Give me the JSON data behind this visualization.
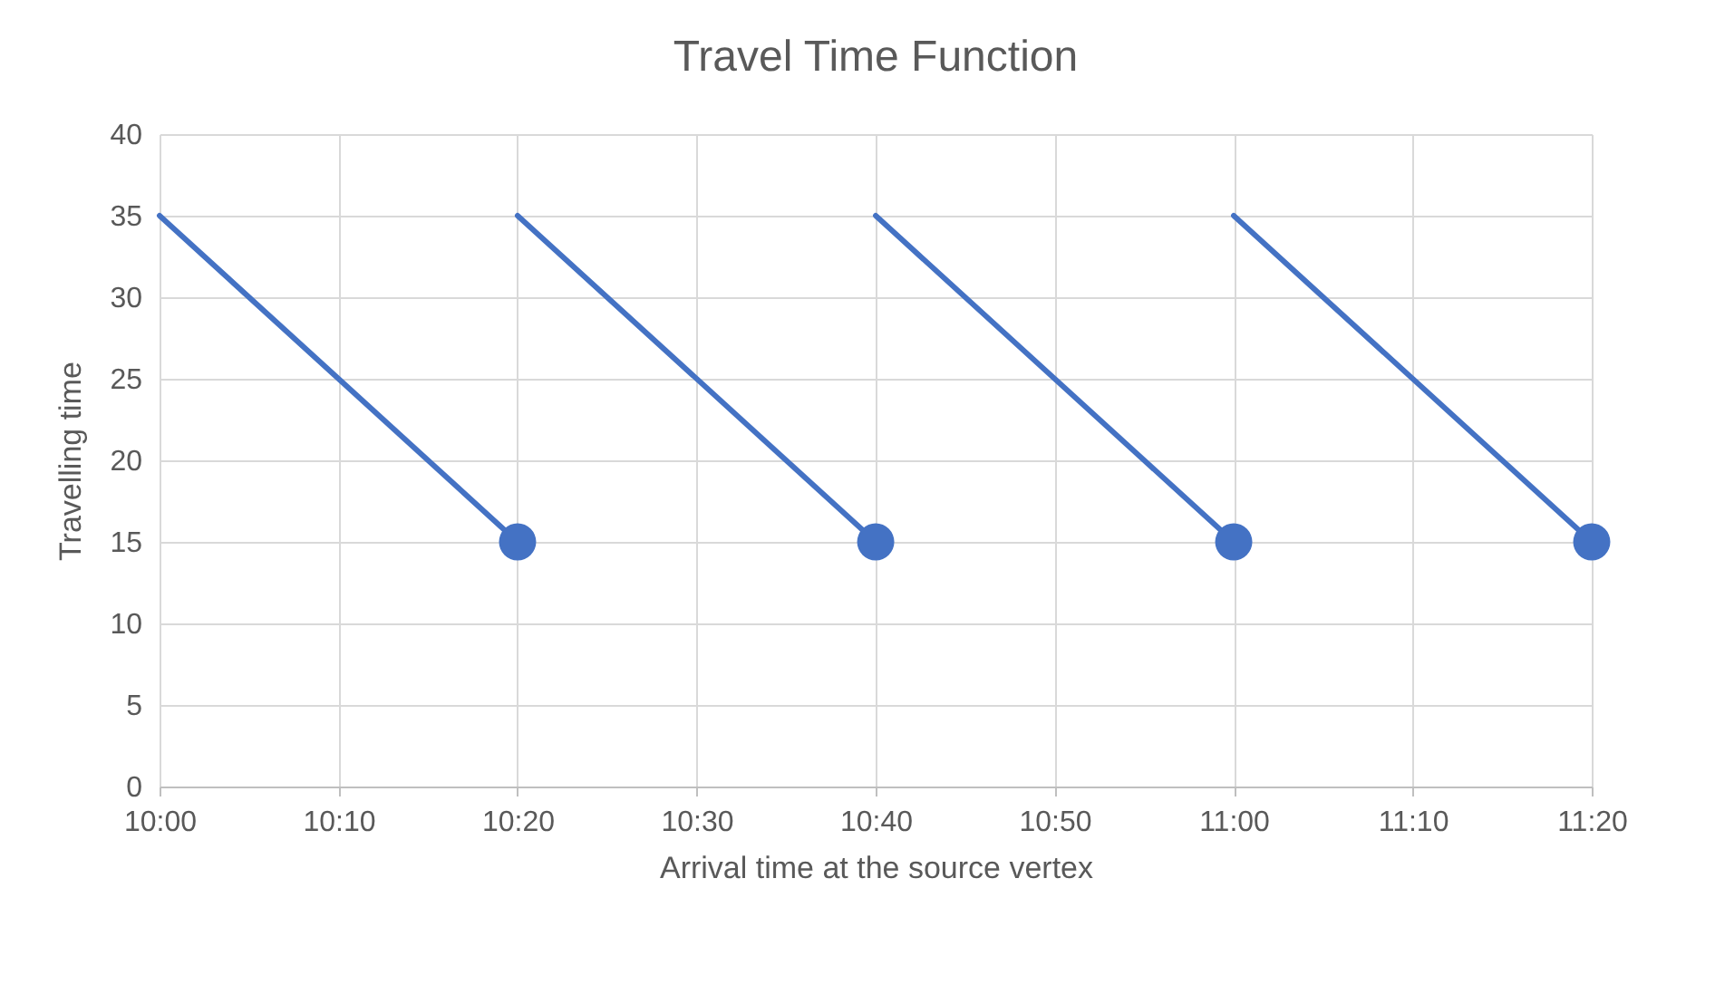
{
  "chart_data": {
    "type": "line",
    "title": "Travel Time Function",
    "xlabel": "Arrival time at the source vertex",
    "ylabel": "Travelling time",
    "xlim": [
      10,
      11.3333
    ],
    "xticks": [
      {
        "value": 10,
        "label": "10:00"
      },
      {
        "value": 10.1667,
        "label": "10:10"
      },
      {
        "value": 10.3333,
        "label": "10:20"
      },
      {
        "value": 10.5,
        "label": "10:30"
      },
      {
        "value": 10.6667,
        "label": "10:40"
      },
      {
        "value": 10.8333,
        "label": "10:50"
      },
      {
        "value": 11,
        "label": "11:00"
      },
      {
        "value": 11.1667,
        "label": "11:10"
      },
      {
        "value": 11.3333,
        "label": "11:20"
      }
    ],
    "ylim": [
      0,
      40
    ],
    "yticks": [
      0,
      5,
      10,
      15,
      20,
      25,
      30,
      35,
      40
    ],
    "grid": true,
    "series": [
      {
        "color": "#4472c4",
        "x": [
          10,
          10.3333
        ],
        "values": [
          35,
          15
        ],
        "marker": "none"
      },
      {
        "color": "#4472c4",
        "x": [
          10.3333,
          10.6667
        ],
        "values": [
          35,
          15
        ],
        "marker": "none"
      },
      {
        "color": "#4472c4",
        "x": [
          10.6667,
          11
        ],
        "values": [
          35,
          15
        ],
        "marker": "none"
      },
      {
        "color": "#4472c4",
        "x": [
          11,
          11.3333
        ],
        "values": [
          35,
          15
        ],
        "marker": "none"
      },
      {
        "type": "scatter",
        "color": "#4472c4",
        "x": [
          10.3333,
          10.6667,
          11,
          11.3333
        ],
        "values": [
          15,
          15,
          15,
          15
        ],
        "marker": "circle"
      }
    ]
  }
}
